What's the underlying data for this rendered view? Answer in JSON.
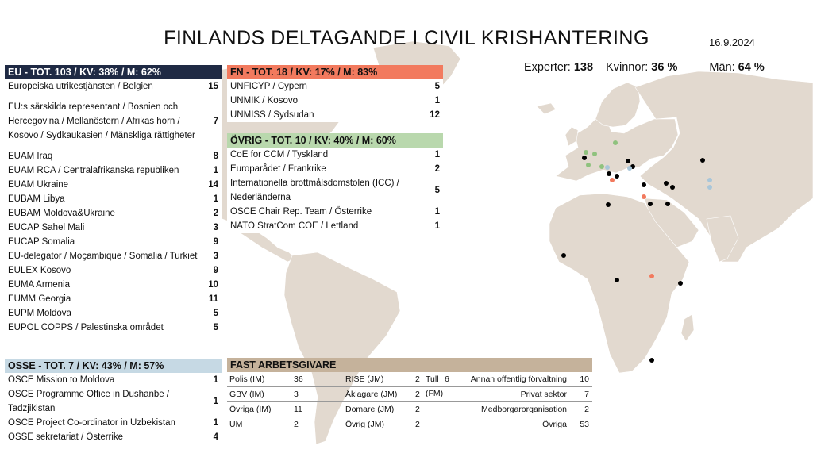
{
  "header": {
    "title": "FINLANDS DELTAGANDE I CIVIL KRISHANTERING",
    "date": "16.9.2024"
  },
  "summary": {
    "experts_label": "Experter:",
    "experts_value": "138",
    "women_label": "Kvinnor:",
    "women_value": "36 %",
    "men_label": "Män:",
    "men_value": "64 %"
  },
  "eu": {
    "header": "EU - TOT. 103 / KV: 38% / M: 62%",
    "items": [
      {
        "label": "Europeiska utrikestjänsten / Belgien",
        "value": "15"
      },
      {
        "label": "EU:s särskilda representant / Bosnien och Hercegovina / Mellanöstern / Afrikas horn / Kosovo / Sydkaukasien / Mänskliga rättigheter",
        "value": "7"
      },
      {
        "label": "EUAM Iraq",
        "value": "8"
      },
      {
        "label": "EUAM RCA / Centralafrikanska republiken",
        "value": "1"
      },
      {
        "label": "EUAM Ukraine",
        "value": "14"
      },
      {
        "label": "EUBAM Libya",
        "value": "1"
      },
      {
        "label": "EUBAM Moldova&Ukraine",
        "value": "2"
      },
      {
        "label": "EUCAP Sahel Mali",
        "value": "3"
      },
      {
        "label": "EUCAP Somalia",
        "value": "9"
      },
      {
        "label": "EU-delegator / Moçambique / Somalia / Turkiet",
        "value": "3"
      },
      {
        "label": "EULEX Kosovo",
        "value": "9"
      },
      {
        "label": "EUMA Armenia",
        "value": "10"
      },
      {
        "label": "EUMM Georgia",
        "value": "11"
      },
      {
        "label": "EUPM Moldova",
        "value": "5"
      },
      {
        "label": "EUPOL COPPS / Palestinska området",
        "value": "5"
      }
    ]
  },
  "osse": {
    "header": "OSSE - TOT. 7 / KV: 43% / M: 57%",
    "items": [
      {
        "label": "OSCE Mission to Moldova",
        "value": "1"
      },
      {
        "label": "OSCE Programme Office in Dushanbe / Tadzjikistan",
        "value": "1"
      },
      {
        "label": "OSCE Project Co-ordinator in Uzbekistan",
        "value": "1"
      },
      {
        "label": "OSSE sekretariat / Österrike",
        "value": "4"
      }
    ]
  },
  "fn": {
    "header": "FN - TOT. 18 / KV: 17% / M: 83%",
    "items": [
      {
        "label": "UNFICYP / Cypern",
        "value": "5"
      },
      {
        "label": "UNMIK / Kosovo",
        "value": "1"
      },
      {
        "label": "UNMISS / Sydsudan",
        "value": "12"
      }
    ]
  },
  "ovrig": {
    "header": "ÖVRIG - TOT. 10 / KV: 40% / M: 60%",
    "items": [
      {
        "label": "CoE for CCM / Tyskland",
        "value": "1"
      },
      {
        "label": "Europarådet / Frankrike",
        "value": "2"
      },
      {
        "label": "Internationella brottmålsdomstolen (ICC) / Nederländerna",
        "value": "5"
      },
      {
        "label": "OSCE Chair Rep. Team / Österrike",
        "value": "1"
      },
      {
        "label": "NATO StratCom COE / Lettland",
        "value": "1"
      }
    ]
  },
  "fast": {
    "header": "FAST ARBETSGIVARE",
    "col1": [
      {
        "label": "Polis (IM)",
        "value": "36"
      },
      {
        "label": "GBV (IM)",
        "value": "3"
      },
      {
        "label": "Övriga (IM)",
        "value": "11"
      },
      {
        "label": "UM",
        "value": "2"
      }
    ],
    "col2": [
      {
        "label": "RISE (JM)",
        "value": "2",
        "label2": "Tull (FM)",
        "value2": "6"
      },
      {
        "label": "Åklagare (JM)",
        "value": "2",
        "label2": "",
        "value2": ""
      },
      {
        "label": "Domare (JM)",
        "value": "2",
        "label2": "",
        "value2": ""
      },
      {
        "label": "Övrig (JM)",
        "value": "2",
        "label2": "",
        "value2": ""
      }
    ],
    "col3": [
      {
        "label": "Annan offentlig förvaltning",
        "value": "10"
      },
      {
        "label": "Privat sektor",
        "value": "7"
      },
      {
        "label": "Medborgarorganisation",
        "value": "2"
      },
      {
        "label": "Övriga",
        "value": "53"
      }
    ]
  },
  "map": {
    "land_color": "#e2d9cf",
    "colors": {
      "eu": "#000000",
      "fn": "#f27a5e",
      "ovrig": "#8fc27e",
      "osse": "#a9c6d9"
    },
    "markers": [
      {
        "type": "ovrig",
        "place": "Lettland"
      },
      {
        "type": "ovrig",
        "place": "Nederländerna"
      },
      {
        "type": "ovrig",
        "place": "Tyskland"
      },
      {
        "type": "ovrig",
        "place": "Frankrike"
      },
      {
        "type": "ovrig",
        "place": "Österrike"
      },
      {
        "type": "eu",
        "place": "Belgien"
      },
      {
        "type": "eu",
        "place": "Ukraina"
      },
      {
        "type": "eu",
        "place": "Moldova"
      },
      {
        "type": "osse",
        "place": "Moldova"
      },
      {
        "type": "eu",
        "place": "Bosnien och Hercegovina"
      },
      {
        "type": "fn",
        "place": "Kosovo"
      },
      {
        "type": "eu",
        "place": "Kosovo"
      },
      {
        "type": "eu",
        "place": "Turkiet"
      },
      {
        "type": "eu",
        "place": "Georgien"
      },
      {
        "type": "eu",
        "place": "Armenien"
      },
      {
        "type": "eu",
        "place": "Irak"
      },
      {
        "type": "fn",
        "place": "Cypern"
      },
      {
        "type": "eu",
        "place": "Palestinska området"
      },
      {
        "type": "eu",
        "place": "Libyen"
      },
      {
        "type": "eu",
        "place": "Mali"
      },
      {
        "type": "eu",
        "place": "Centralafrikanska republiken"
      },
      {
        "type": "fn",
        "place": "Sydsudan"
      },
      {
        "type": "eu",
        "place": "Somalia"
      },
      {
        "type": "eu",
        "place": "Moçambique"
      },
      {
        "type": "osse",
        "place": "Uzbekistan"
      },
      {
        "type": "osse",
        "place": "Tadzjikistan"
      },
      {
        "type": "eu",
        "place": "Kazakstan"
      },
      {
        "type": "osse",
        "place": "Österrike"
      }
    ]
  }
}
